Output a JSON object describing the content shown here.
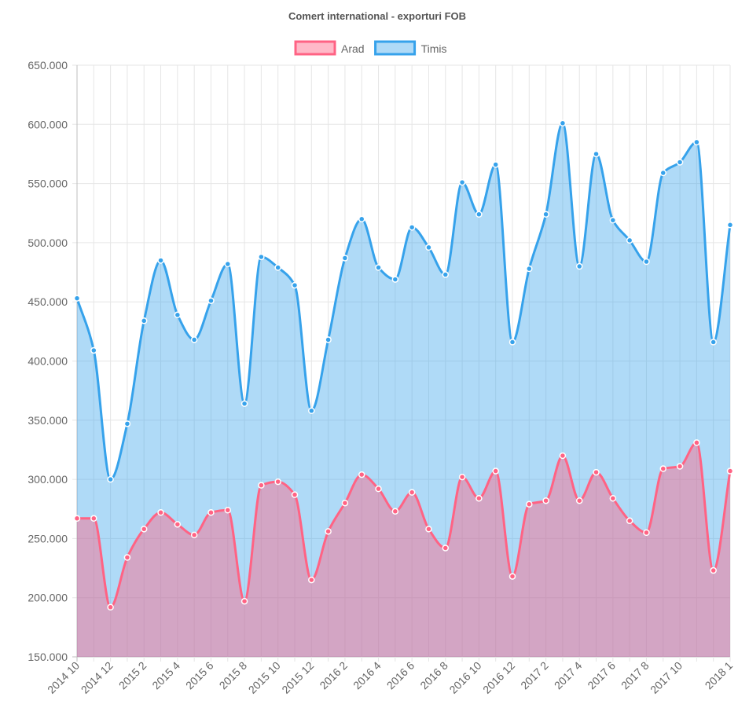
{
  "chart_data": {
    "type": "area",
    "title": "Comert international - exporturi FOB",
    "legend_position": "top",
    "grid": true,
    "ylim": [
      150000,
      650000
    ],
    "y_ticks": [
      "650.000",
      "600.000",
      "550.000",
      "500.000",
      "450.000",
      "400.000",
      "350.000",
      "300.000",
      "250.000",
      "200.000",
      "150.000"
    ],
    "x_tick_labels": [
      "2014 10",
      "2014 12",
      "2015 2",
      "2015 4",
      "2015 6",
      "2015 8",
      "2015 10",
      "2015 12",
      "2016 2",
      "2016 4",
      "2016 6",
      "2016 8",
      "2016 10",
      "2016 12",
      "2017 2",
      "2017 4",
      "2017 6",
      "2017 8",
      "2017 10",
      "2018 1"
    ],
    "categories": [
      "2014 10",
      "2014 11",
      "2014 12",
      "2015 1",
      "2015 2",
      "2015 3",
      "2015 4",
      "2015 5",
      "2015 6",
      "2015 7",
      "2015 8",
      "2015 9",
      "2015 10",
      "2015 11",
      "2015 12",
      "2016 1",
      "2016 2",
      "2016 3",
      "2016 4",
      "2016 5",
      "2016 6",
      "2016 7",
      "2016 8",
      "2016 9",
      "2016 10",
      "2016 11",
      "2016 12",
      "2017 1",
      "2017 2",
      "2017 3",
      "2017 4",
      "2017 5",
      "2017 6",
      "2017 7",
      "2017 8",
      "2017 9",
      "2017 10",
      "2017 11",
      "2017 12",
      "2018 1"
    ],
    "series": [
      {
        "name": "Arad",
        "color": "#ff6384",
        "fill": "rgba(255,99,132,0.45)",
        "values": [
          267000,
          267000,
          192000,
          234000,
          258000,
          272000,
          262000,
          253000,
          272000,
          274000,
          197000,
          295000,
          298000,
          287000,
          215000,
          256000,
          280000,
          304000,
          292000,
          273000,
          289000,
          258000,
          242000,
          302000,
          284000,
          307000,
          218000,
          279000,
          282000,
          320000,
          282000,
          306000,
          284000,
          265000,
          255000,
          309000,
          311000,
          331000,
          223000,
          307000
        ]
      },
      {
        "name": "Timis",
        "color": "#36a2eb",
        "fill": "rgba(54,162,235,0.4)",
        "values": [
          453000,
          409000,
          300000,
          347000,
          434000,
          485000,
          439000,
          418000,
          451000,
          482000,
          364000,
          488000,
          479000,
          464000,
          358000,
          418000,
          487000,
          520000,
          479000,
          469000,
          513000,
          496000,
          473000,
          551000,
          524000,
          566000,
          416000,
          478000,
          524000,
          601000,
          480000,
          575000,
          519000,
          502000,
          484000,
          559000,
          568000,
          585000,
          416000,
          515000
        ]
      }
    ]
  }
}
